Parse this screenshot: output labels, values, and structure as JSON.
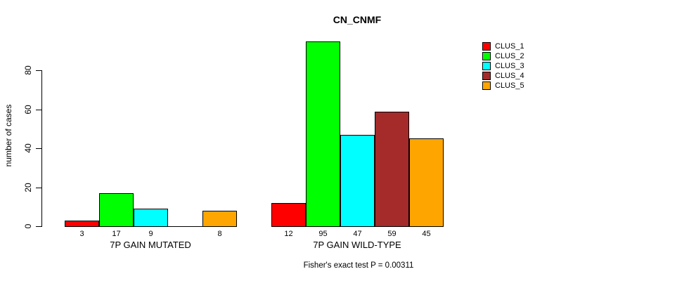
{
  "title": "CN_CNMF",
  "caption": "Fisher's exact test P = 0.00311",
  "chart_data": {
    "type": "bar",
    "title": "CN_CNMF",
    "xlabel": "",
    "ylabel": "number of cases",
    "ylim": [
      0,
      95
    ],
    "yticks": [
      0,
      20,
      40,
      60,
      80
    ],
    "grid": false,
    "legend_position": "right",
    "categories": [
      "7P GAIN MUTATED",
      "7P GAIN WILD-TYPE"
    ],
    "series": [
      {
        "name": "CLUS_1",
        "color": "#FF0000",
        "values": [
          3,
          12
        ]
      },
      {
        "name": "CLUS_2",
        "color": "#00FF00",
        "values": [
          17,
          95
        ]
      },
      {
        "name": "CLUS_3",
        "color": "#00FFFF",
        "values": [
          9,
          47
        ]
      },
      {
        "name": "CLUS_4",
        "color": "#A52A2A",
        "values": [
          0,
          59
        ]
      },
      {
        "name": "CLUS_5",
        "color": "#FFA500",
        "values": [
          8,
          45
        ]
      }
    ],
    "bar_labels": [
      [
        "3",
        "17",
        "9",
        "",
        "8"
      ],
      [
        "12",
        "95",
        "47",
        "59",
        "45"
      ]
    ],
    "annotation": "Fisher's exact test P = 0.00311"
  }
}
